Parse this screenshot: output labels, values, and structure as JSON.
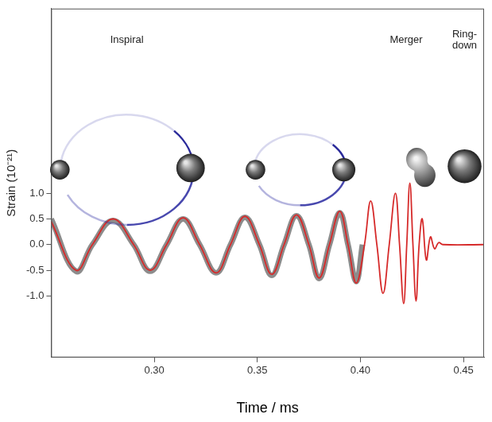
{
  "chart_data": {
    "type": "line",
    "y_label": "Strain (10⁻²¹)",
    "x_label": "Time / ms",
    "annotations": [
      "Inspiral",
      "Merger",
      "Ring-down"
    ],
    "xlim": [
      0.25,
      0.46
    ],
    "xticks": [
      {
        "value": 0.3,
        "label": "0.30"
      },
      0.35,
      {
        "value": 0.4,
        "label": "0.40"
      },
      0.45
    ],
    "ylim": [
      -2.2,
      4.6
    ],
    "yticks": [
      {
        "value": -1,
        "label": "-1.0"
      },
      -0.5,
      {
        "value": 0,
        "label": "0.0"
      },
      0.5,
      {
        "value": 1,
        "label": "1.0"
      }
    ],
    "grid": false,
    "series": [
      {
        "color": "#8c8c8c",
        "x": [
          0.25,
          0.262,
          0.27,
          0.28,
          0.29,
          0.298,
          0.306,
          0.314,
          0.322,
          0.33,
          0.337,
          0.344,
          0.351,
          0.357,
          0.363,
          0.369,
          0.375,
          0.38,
          0.385,
          0.39,
          0.394,
          0.398,
          0.401
        ],
        "values": [
          0.5,
          -0.52,
          0.0,
          0.47,
          0.0,
          -0.52,
          0.0,
          0.5,
          0.0,
          -0.55,
          0.0,
          0.53,
          0.0,
          -0.6,
          0.0,
          0.56,
          0.0,
          -0.66,
          0.0,
          0.62,
          0.0,
          -0.72,
          0.0
        ]
      },
      {
        "color": "#d62a2a",
        "x": [
          0.25,
          0.262,
          0.27,
          0.28,
          0.29,
          0.298,
          0.306,
          0.314,
          0.322,
          0.33,
          0.337,
          0.344,
          0.351,
          0.357,
          0.363,
          0.369,
          0.375,
          0.38,
          0.385,
          0.39,
          0.394,
          0.398,
          0.402,
          0.405,
          0.408,
          0.411,
          0.414,
          0.417,
          0.419,
          0.421,
          0.4225,
          0.424,
          0.4255,
          0.427,
          0.4285,
          0.43,
          0.432,
          0.434,
          0.436,
          0.438,
          0.44,
          0.46
        ],
        "values": [
          0.45,
          -0.5,
          0.0,
          0.5,
          0.0,
          -0.5,
          0.0,
          0.52,
          0.0,
          -0.55,
          0.0,
          0.55,
          0.0,
          -0.58,
          0.0,
          0.58,
          0.0,
          -0.65,
          0.0,
          0.65,
          0.0,
          -0.75,
          0.0,
          0.85,
          0.0,
          -0.95,
          0.0,
          1.0,
          0.0,
          -1.15,
          0.0,
          1.2,
          0.0,
          -1.1,
          0.0,
          0.5,
          -0.3,
          0.15,
          -0.08,
          0.04,
          0.0,
          0.0
        ]
      }
    ]
  }
}
